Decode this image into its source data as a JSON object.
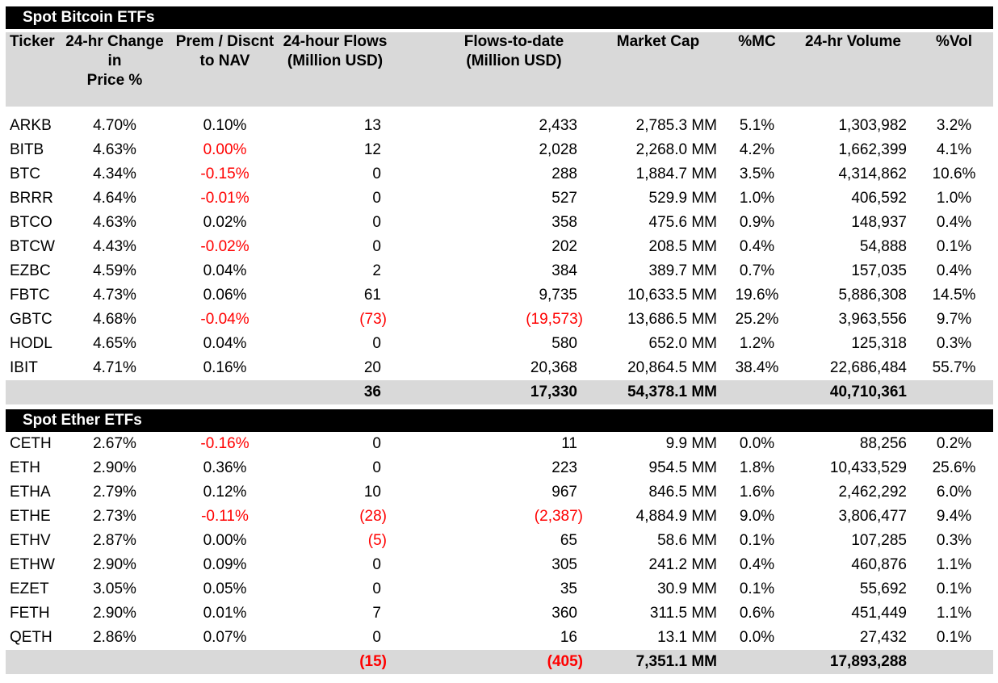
{
  "colors": {
    "accent_negative": "#FF0000",
    "band_gray": "#D9D9D9",
    "bar_black": "#000000"
  },
  "header_columns": [
    "Ticker",
    "24-hr Change in\nPrice %",
    "Prem / Discnt\nto NAV",
    "24-hour Flows\n(Million USD)",
    "Flows-to-date\n(Million USD)",
    "Market Cap",
    "%MC",
    "24-hr Volume",
    "%Vol"
  ],
  "sections": [
    {
      "title": "Spot Bitcoin ETFs",
      "rows": [
        {
          "ticker": "ARKB",
          "vals": [
            "4.70%",
            "0.10%",
            "13",
            "2,433",
            "2,785.3 MM",
            "5.1%",
            "1,303,982",
            "3.2%"
          ],
          "red": []
        },
        {
          "ticker": "BITB",
          "vals": [
            "4.63%",
            "0.00%",
            "12",
            "2,028",
            "2,268.0 MM",
            "4.2%",
            "1,662,399",
            "4.1%"
          ],
          "red": [
            1
          ]
        },
        {
          "ticker": "BTC",
          "vals": [
            "4.34%",
            "-0.15%",
            "0",
            "288",
            "1,884.7 MM",
            "3.5%",
            "4,314,862",
            "10.6%"
          ],
          "red": [
            1
          ]
        },
        {
          "ticker": "BRRR",
          "vals": [
            "4.64%",
            "-0.01%",
            "0",
            "527",
            "529.9 MM",
            "1.0%",
            "406,592",
            "1.0%"
          ],
          "red": [
            1
          ]
        },
        {
          "ticker": "BTCO",
          "vals": [
            "4.63%",
            "0.02%",
            "0",
            "358",
            "475.6 MM",
            "0.9%",
            "148,937",
            "0.4%"
          ],
          "red": []
        },
        {
          "ticker": "BTCW",
          "vals": [
            "4.43%",
            "-0.02%",
            "0",
            "202",
            "208.5 MM",
            "0.4%",
            "54,888",
            "0.1%"
          ],
          "red": [
            1
          ]
        },
        {
          "ticker": "EZBC",
          "vals": [
            "4.59%",
            "0.04%",
            "2",
            "384",
            "389.7 MM",
            "0.7%",
            "157,035",
            "0.4%"
          ],
          "red": []
        },
        {
          "ticker": "FBTC",
          "vals": [
            "4.73%",
            "0.06%",
            "61",
            "9,735",
            "10,633.5 MM",
            "19.6%",
            "5,886,308",
            "14.5%"
          ],
          "red": []
        },
        {
          "ticker": "GBTC",
          "vals": [
            "4.68%",
            "-0.04%",
            "(73)",
            "(19,573)",
            "13,686.5 MM",
            "25.2%",
            "3,963,556",
            "9.7%"
          ],
          "red": [
            1,
            2,
            3
          ]
        },
        {
          "ticker": "HODL",
          "vals": [
            "4.65%",
            "0.04%",
            "0",
            "580",
            "652.0 MM",
            "1.2%",
            "125,318",
            "0.3%"
          ],
          "red": []
        },
        {
          "ticker": "IBIT",
          "vals": [
            "4.71%",
            "0.16%",
            "20",
            "20,368",
            "20,864.5 MM",
            "38.4%",
            "22,686,484",
            "55.7%"
          ],
          "red": []
        }
      ],
      "totals": {
        "vals": [
          "",
          "",
          "36",
          "17,330",
          "54,378.1 MM",
          "",
          "40,710,361",
          ""
        ],
        "red": []
      }
    },
    {
      "title": "Spot Ether ETFs",
      "rows": [
        {
          "ticker": "CETH",
          "vals": [
            "2.67%",
            "-0.16%",
            "0",
            "11",
            "9.9 MM",
            "0.0%",
            "88,256",
            "0.2%"
          ],
          "red": [
            1
          ]
        },
        {
          "ticker": "ETH",
          "vals": [
            "2.90%",
            "0.36%",
            "0",
            "223",
            "954.5 MM",
            "1.8%",
            "10,433,529",
            "25.6%"
          ],
          "red": []
        },
        {
          "ticker": "ETHA",
          "vals": [
            "2.79%",
            "0.12%",
            "10",
            "967",
            "846.5 MM",
            "1.6%",
            "2,462,292",
            "6.0%"
          ],
          "red": []
        },
        {
          "ticker": "ETHE",
          "vals": [
            "2.73%",
            "-0.11%",
            "(28)",
            "(2,387)",
            "4,884.9 MM",
            "9.0%",
            "3,806,477",
            "9.4%"
          ],
          "red": [
            1,
            2,
            3
          ]
        },
        {
          "ticker": "ETHV",
          "vals": [
            "2.87%",
            "0.00%",
            "(5)",
            "65",
            "58.6 MM",
            "0.1%",
            "107,285",
            "0.3%"
          ],
          "red": [
            2
          ]
        },
        {
          "ticker": "ETHW",
          "vals": [
            "2.90%",
            "0.09%",
            "0",
            "305",
            "241.2 MM",
            "0.4%",
            "460,876",
            "1.1%"
          ],
          "red": []
        },
        {
          "ticker": "EZET",
          "vals": [
            "3.05%",
            "0.05%",
            "0",
            "35",
            "30.9 MM",
            "0.1%",
            "55,692",
            "0.1%"
          ],
          "red": []
        },
        {
          "ticker": "FETH",
          "vals": [
            "2.90%",
            "0.01%",
            "7",
            "360",
            "311.5 MM",
            "0.6%",
            "451,449",
            "1.1%"
          ],
          "red": []
        },
        {
          "ticker": "QETH",
          "vals": [
            "2.86%",
            "0.07%",
            "0",
            "16",
            "13.1 MM",
            "0.0%",
            "27,432",
            "0.1%"
          ],
          "red": []
        }
      ],
      "totals": {
        "vals": [
          "",
          "",
          "(15)",
          "(405)",
          "7,351.1 MM",
          "",
          "17,893,288",
          ""
        ],
        "red": [
          2,
          3
        ]
      }
    }
  ]
}
